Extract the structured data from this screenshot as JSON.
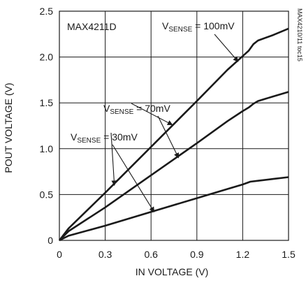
{
  "chart_data": {
    "type": "line",
    "part_label": "MAX4211D",
    "side_label": "MAX4210/11 toc15",
    "xlabel": "IN VOLTAGE (V)",
    "ylabel": "POUT VOLTAGE (V)",
    "xlim": [
      0,
      1.5
    ],
    "ylim": [
      0,
      2.5
    ],
    "x_ticks": [
      "0",
      "0.3",
      "0.6",
      "0.9",
      "1.2",
      "1.5"
    ],
    "y_ticks": [
      "0",
      "0.5",
      "1.0",
      "1.5",
      "2.0",
      "2.5"
    ],
    "grid": true,
    "series": [
      {
        "name": "V_SENSE = 100mV",
        "label_main": "V",
        "label_sub": "SENSE",
        "label_tail": " = 100mV",
        "x": [
          0,
          0.06,
          0.3,
          0.6,
          0.9,
          1.1,
          1.2,
          1.24,
          1.27,
          1.3,
          1.4,
          1.5
        ],
        "y": [
          0,
          0.13,
          0.52,
          1.02,
          1.52,
          1.86,
          2.01,
          2.07,
          2.14,
          2.18,
          2.24,
          2.31
        ]
      },
      {
        "name": "V_SENSE = 70mV",
        "label_main": "V",
        "label_sub": "SENSE",
        "label_tail": " = 70mV",
        "x": [
          0,
          0.06,
          0.3,
          0.6,
          0.9,
          1.1,
          1.2,
          1.24,
          1.27,
          1.3,
          1.4,
          1.5
        ],
        "y": [
          0,
          0.1,
          0.36,
          0.71,
          1.06,
          1.3,
          1.41,
          1.45,
          1.49,
          1.52,
          1.57,
          1.62
        ]
      },
      {
        "name": "V_SENSE = 30mV",
        "label_main": "V",
        "label_sub": "SENSE",
        "label_tail": " = 30mV",
        "x": [
          0,
          0.06,
          0.3,
          0.6,
          0.9,
          1.1,
          1.2,
          1.25,
          1.3,
          1.4,
          1.5
        ],
        "y": [
          0,
          0.05,
          0.16,
          0.31,
          0.46,
          0.56,
          0.61,
          0.64,
          0.65,
          0.67,
          0.69
        ]
      }
    ],
    "line_color": "#1a1a1a",
    "grid_color": "#1a1a1a"
  }
}
